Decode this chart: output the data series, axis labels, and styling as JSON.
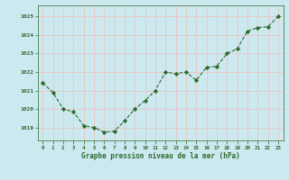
{
  "hours": [
    0,
    1,
    2,
    3,
    4,
    5,
    6,
    7,
    8,
    9,
    10,
    11,
    12,
    13,
    14,
    15,
    16,
    17,
    18,
    19,
    20,
    21,
    22,
    23
  ],
  "pressure": [
    1021.4,
    1020.9,
    1020.0,
    1019.85,
    1019.1,
    1019.0,
    1018.75,
    1018.8,
    1019.35,
    1020.0,
    1020.45,
    1021.0,
    1022.0,
    1021.9,
    1022.0,
    1021.55,
    1022.25,
    1022.3,
    1023.0,
    1023.25,
    1024.2,
    1024.4,
    1024.45,
    1025.0
  ],
  "line_color": "#2d6a2d",
  "marker_color": "#2d6a2d",
  "bg_color": "#cce9f0",
  "grid_color": "#e8c8c8",
  "xlabel": "Graphe pression niveau de la mer (hPa)",
  "xlabel_color": "#2d6a2d",
  "tick_color": "#2d6a2d",
  "yticks": [
    1019,
    1020,
    1021,
    1022,
    1023,
    1024,
    1025
  ],
  "ylim": [
    1018.3,
    1025.6
  ],
  "xlim": [
    -0.5,
    23.5
  ]
}
